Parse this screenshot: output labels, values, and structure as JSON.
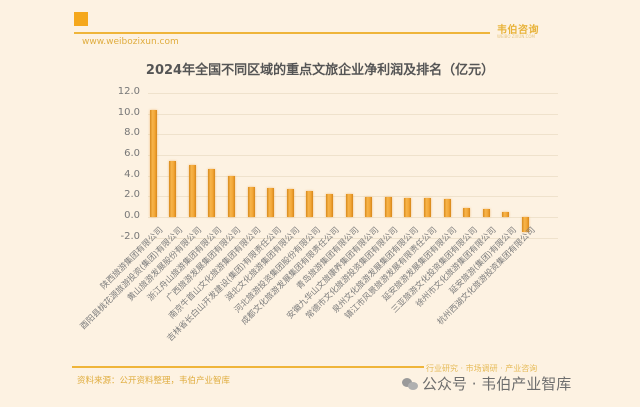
{
  "header": {
    "brand": "韦伯咨询",
    "brand_sub": "WEIBO ZIXUN.COM",
    "website": "www.weibozixun.com",
    "title": "2024年全国不同区域的重点文旅企业净利润及排名（亿元）"
  },
  "footer": {
    "source": "资料来源：公开资料整理，韦伯产业智库",
    "tagline": "行业研究 · 市场调研 · 产业咨询",
    "wechat": "公众号 · 韦伯产业智库"
  },
  "colors": {
    "background": "#fdf2e2",
    "bar": "#f2a535",
    "accent": "#efb53a"
  },
  "chart_data": {
    "type": "bar",
    "title": "2024年全国不同区域的重点文旅企业净利润及排名（亿元）",
    "xlabel": "",
    "ylabel": "亿元",
    "ylim": [
      -2.0,
      12.0
    ],
    "yticks": [
      "12.0",
      "10.0",
      "8.0",
      "6.0",
      "4.0",
      "2.0",
      "0.0",
      "-2.0"
    ],
    "grid": true,
    "legend": null,
    "categories": [
      "陕西旅游集团有限公司",
      "酉阳县桃花源旅游投资(集团)有限公司",
      "黄山旅游发展股份有限公司",
      "浙江舟山旅游集团有限公司",
      "广西旅游发展集团有限公司",
      "南京牛首山文化旅游集团有限公司",
      "吉林省长白山开发建设(集团)有限责任公司",
      "湖北文化旅游集团有限公司",
      "河北旅游投资集团股份有限公司",
      "成都文化旅游发展集团有限责任公司",
      "青岛旅游集团有限公司",
      "安徽九华山文旅康养集团有限公司",
      "常德市文化旅游投资集团有限公司",
      "泉州文化旅游发展集团有限公司",
      "镇江市风景旅游发展有限责任公司",
      "延安旅游发展集团有限公司",
      "三亚旅游文化投资集团有限公司",
      "徐州市文化旅游集团有限公司",
      "延安旅游(集团)有限公司",
      "杭州西湖文化旅游投资集团有限公司"
    ],
    "values": [
      10.4,
      5.4,
      5.0,
      4.6,
      4.0,
      2.9,
      2.8,
      2.7,
      2.5,
      2.2,
      2.2,
      1.9,
      1.9,
      1.8,
      1.8,
      1.7,
      0.9,
      0.8,
      0.45,
      -1.45
    ]
  }
}
